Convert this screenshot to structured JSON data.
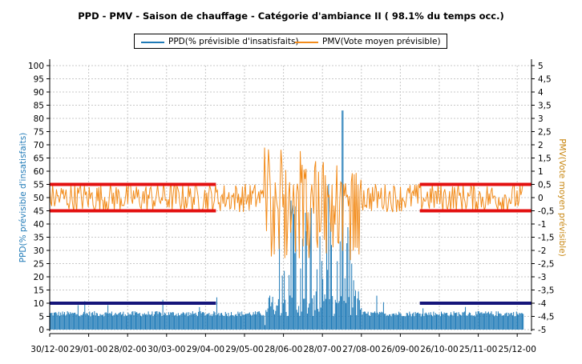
{
  "chart_data": {
    "type": "bar+line",
    "title": "PPD - PMV  - Saison de chauffage - Catégorie d'ambiance II ( 98.1% du temps occ.)",
    "legend": [
      {
        "name": "PPD(% prévisible d'insatisfaits)",
        "color": "#1f7ab7"
      },
      {
        "name": "PMV(Vote moyen prévisible)",
        "color": "#f28c1c"
      }
    ],
    "x_tick_labels": [
      "30/12-00",
      "29/01-00",
      "28/02-00",
      "30/03-00",
      "29/04-00",
      "29/05-00",
      "28/06-00",
      "28/07-00",
      "27/08-00",
      "26/09-00",
      "26/10-00",
      "25/11-00",
      "25/12-00"
    ],
    "y_left": {
      "label": "PPD(% prévisible d'insatisfaits)",
      "ylim": [
        0,
        100
      ],
      "ticks": [
        "0",
        "5",
        "10",
        "15",
        "20",
        "25",
        "30",
        "35",
        "40",
        "45",
        "50",
        "55",
        "60",
        "65",
        "70",
        "75",
        "80",
        "85",
        "90",
        "95",
        "100"
      ],
      "color": "#1f7ab7"
    },
    "y_right": {
      "label": "PMV(Vote moyen prévisible)",
      "ylim": [
        -5,
        5
      ],
      "ticks": [
        "-5",
        "-4,5",
        "-4",
        "-3,5",
        "-3",
        "-2,5",
        "-2",
        "-1,5",
        "-1",
        "-0,5",
        "0",
        "0,5",
        "1",
        "1,5",
        "2",
        "2,5",
        "3",
        "3,5",
        "4",
        "4,5",
        "5"
      ],
      "color": "#c8860f"
    },
    "grid": true,
    "series": [
      {
        "name": "PPD(% prévisible d'insatisfaits)",
        "axis": "left",
        "profile_day_ppd": [
          [
            0,
            6
          ],
          [
            30,
            6.5
          ],
          [
            60,
            6
          ],
          [
            90,
            6
          ],
          [
            120,
            6.2
          ],
          [
            150,
            6.5
          ],
          [
            165,
            9
          ],
          [
            170,
            30
          ],
          [
            175,
            55
          ],
          [
            180,
            40
          ],
          [
            190,
            58
          ],
          [
            200,
            50
          ],
          [
            210,
            52
          ],
          [
            220,
            60
          ],
          [
            225,
            83
          ],
          [
            228,
            60
          ],
          [
            235,
            25
          ],
          [
            245,
            8
          ],
          [
            270,
            6.5
          ],
          [
            300,
            6
          ],
          [
            330,
            6
          ],
          [
            365,
            6.5
          ]
        ],
        "ppd_max_day": 225,
        "ppd_max": 83
      },
      {
        "name": "PMV(Vote moyen prévisible)",
        "axis": "right",
        "pmv_band_winter": [
          -0.5,
          0.5
        ],
        "pmv_summer_min": -2.5,
        "pmv_summer_max": 2
      }
    ],
    "limits": [
      {
        "axis": "left",
        "value": 10,
        "x_start_day": 0,
        "x_end_day": 128,
        "color": "#15157a"
      },
      {
        "axis": "left",
        "value": 10,
        "x_start_day": 285,
        "x_end_day": 371,
        "color": "#15157a"
      },
      {
        "axis": "right",
        "value": 0.5,
        "x_start_day": 0,
        "x_end_day": 128,
        "color": "#e31010"
      },
      {
        "axis": "right",
        "value": -0.5,
        "x_start_day": 0,
        "x_end_day": 128,
        "color": "#e31010"
      },
      {
        "axis": "right",
        "value": 0.5,
        "x_start_day": 285,
        "x_end_day": 371,
        "color": "#e31010"
      },
      {
        "axis": "right",
        "value": -0.5,
        "x_start_day": 285,
        "x_end_day": 371,
        "color": "#e31010"
      }
    ],
    "x_range_days": [
      0,
      371
    ]
  }
}
